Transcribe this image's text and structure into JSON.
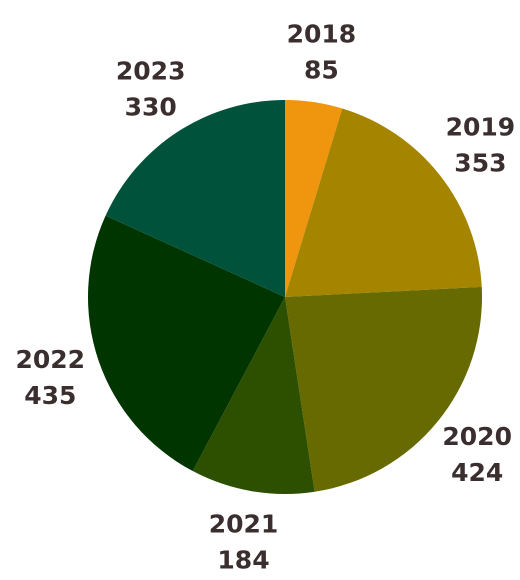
{
  "chart_data": {
    "type": "pie",
    "start_angle": "12 o'clock",
    "direction": "clockwise",
    "slices": [
      {
        "label": "2018",
        "value": 85,
        "color": "#f0960e"
      },
      {
        "label": "2019",
        "value": 353,
        "color": "#a58400"
      },
      {
        "label": "2020",
        "value": 424,
        "color": "#666a00"
      },
      {
        "label": "2021",
        "value": 184,
        "color": "#2c4f00"
      },
      {
        "label": "2022",
        "value": 435,
        "color": "#003500"
      },
      {
        "label": "2023",
        "value": 330,
        "color": "#00523a"
      }
    ],
    "label_color": "#3a2e2e"
  }
}
